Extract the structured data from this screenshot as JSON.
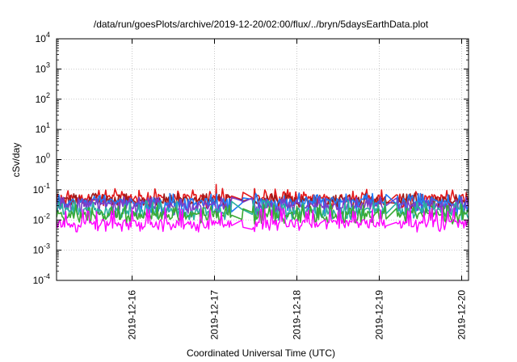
{
  "chart_data": {
    "type": "line",
    "title": "/data/run/goesPlots/archive/2019-12-20/02:00/flux/../bryn/5daysEarthData.plot",
    "xlabel": "Coordinated Universal Time (UTC)",
    "ylabel": "cSv/day",
    "yscale": "log",
    "ylim": [
      0.0001,
      10000
    ],
    "xlim": [
      "2019-12-15 02:00",
      "2019-12-20 02:00"
    ],
    "grid": true,
    "legend": "none",
    "y_ticks": [
      {
        "base": "10",
        "exp": "-4"
      },
      {
        "base": "10",
        "exp": "-3"
      },
      {
        "base": "10",
        "exp": "-2"
      },
      {
        "base": "10",
        "exp": "-1"
      },
      {
        "base": "10",
        "exp": "0"
      },
      {
        "base": "10",
        "exp": "1"
      },
      {
        "base": "10",
        "exp": "2"
      },
      {
        "base": "10",
        "exp": "3"
      },
      {
        "base": "10",
        "exp": "4"
      }
    ],
    "x_ticks": [
      "2019-12-16",
      "2019-12-17",
      "2019-12-18",
      "2019-12-19",
      "2019-12-20"
    ],
    "gaps": [
      {
        "from": "2019-12-17 05:00",
        "to": "2019-12-17 08:00"
      },
      {
        "from": "2019-12-17 08:30",
        "to": "2019-12-17 11:00"
      },
      {
        "from": "2019-12-19 02:00",
        "to": "2019-12-19 05:00"
      }
    ],
    "series": [
      {
        "color": "#e41a1c",
        "base": 0.055,
        "high": 0.085,
        "low": 0.03,
        "spikes": [
          {
            "x": "2019-12-17 00:30",
            "y": 0.15
          }
        ]
      },
      {
        "color": "#9e1a1a",
        "base": 0.045,
        "high": 0.06,
        "low": 0.03
      },
      {
        "color": "#1f78f4",
        "base": 0.04,
        "high": 0.06,
        "low": 0.018
      },
      {
        "color": "#7a3cc8",
        "base": 0.03,
        "high": 0.045,
        "low": 0.015
      },
      {
        "color": "#2ab0a0",
        "base": 0.02,
        "high": 0.035,
        "low": 0.012
      },
      {
        "color": "#3aaa35",
        "base": 0.015,
        "high": 0.025,
        "low": 0.009
      },
      {
        "color": "#ff00ff",
        "base": 0.008,
        "high": 0.02,
        "low": 0.005
      }
    ]
  }
}
